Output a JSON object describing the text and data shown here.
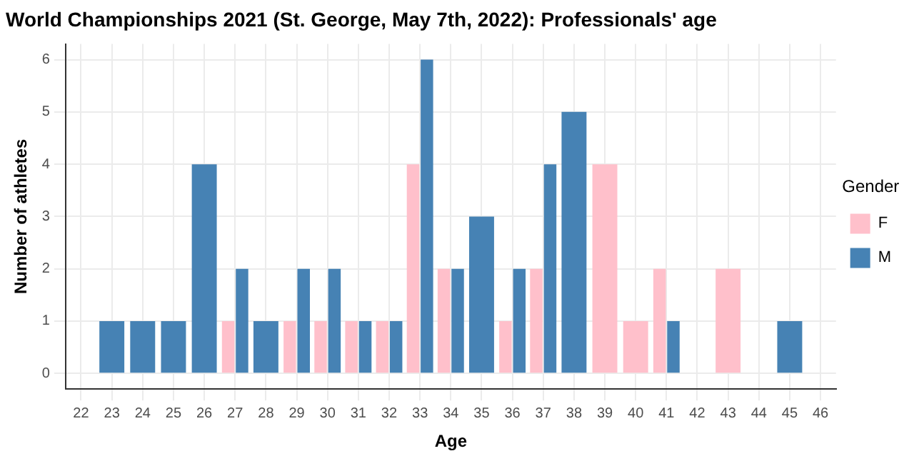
{
  "chart_data": {
    "type": "bar",
    "title": "World Championships 2021 (St. George, May 7th, 2022): Professionals' age",
    "xlabel": "Age",
    "ylabel": "Number of athletes",
    "legend_title": "Gender",
    "categories": [
      "22",
      "23",
      "24",
      "25",
      "26",
      "27",
      "28",
      "29",
      "30",
      "31",
      "32",
      "33",
      "34",
      "35",
      "36",
      "37",
      "38",
      "39",
      "40",
      "41",
      "42",
      "43",
      "44",
      "45",
      "46"
    ],
    "series": [
      {
        "name": "F",
        "color": "#ffc0cb",
        "values": [
          null,
          null,
          null,
          null,
          null,
          1,
          null,
          1,
          1,
          1,
          1,
          4,
          2,
          null,
          1,
          2,
          null,
          4,
          1,
          2,
          null,
          2,
          null,
          null,
          null
        ]
      },
      {
        "name": "M",
        "color": "#4682b4",
        "values": [
          null,
          1,
          1,
          1,
          4,
          2,
          1,
          2,
          2,
          1,
          1,
          6,
          2,
          3,
          2,
          4,
          5,
          null,
          null,
          1,
          null,
          null,
          null,
          1,
          null
        ]
      }
    ],
    "ylim": [
      -0.3,
      6.3
    ],
    "yticks": [
      0,
      1,
      2,
      3,
      4,
      5,
      6
    ],
    "grid": true,
    "legend": "right"
  }
}
